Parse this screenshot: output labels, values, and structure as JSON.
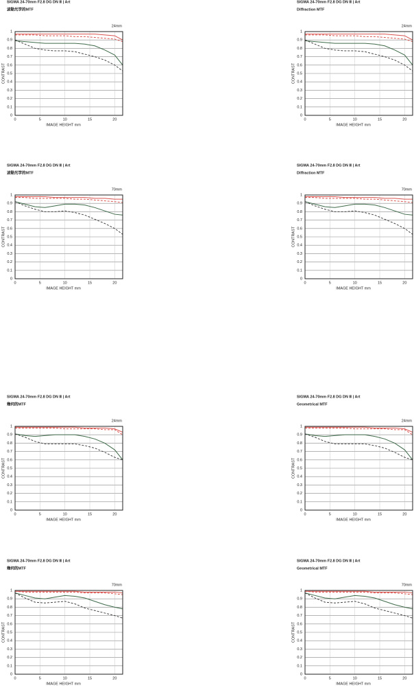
{
  "chart_data": [
    {
      "type": "line",
      "title": "SIGMA 24-70mm F2.8 DG DN Ⅱ | Art",
      "subtitle": "波動光学的MTF",
      "annotation": "24mm",
      "xlabel": "IMAGE HEIGHT   mm",
      "ylabel": "CONTRAST",
      "x": [
        0,
        2,
        4,
        6,
        8,
        10,
        12,
        14,
        16,
        18,
        20,
        21.6
      ],
      "xlim": [
        0,
        21.6
      ],
      "ylim": [
        0,
        1
      ],
      "xticks": [
        0,
        5,
        10,
        15,
        20
      ],
      "yticks": [
        0,
        0.1,
        0.2,
        0.3,
        0.4,
        0.5,
        0.6,
        0.7,
        0.8,
        0.9,
        1
      ],
      "grid": true,
      "series": [
        {
          "color": "#d9534f",
          "dash": false,
          "values": [
            0.97,
            0.97,
            0.97,
            0.97,
            0.97,
            0.97,
            0.97,
            0.97,
            0.97,
            0.96,
            0.95,
            0.9
          ]
        },
        {
          "color": "#d9534f",
          "dash": true,
          "values": [
            0.96,
            0.96,
            0.96,
            0.95,
            0.95,
            0.95,
            0.94,
            0.94,
            0.93,
            0.92,
            0.91,
            0.88
          ]
        },
        {
          "color": "#3f6b4a",
          "dash": false,
          "values": [
            0.89,
            0.88,
            0.87,
            0.86,
            0.86,
            0.86,
            0.86,
            0.85,
            0.83,
            0.78,
            0.72,
            0.6
          ]
        },
        {
          "color": "#444444",
          "dash": true,
          "values": [
            0.9,
            0.85,
            0.8,
            0.78,
            0.77,
            0.77,
            0.76,
            0.73,
            0.7,
            0.66,
            0.6,
            0.53
          ]
        }
      ]
    },
    {
      "type": "line",
      "title": "SIGMA 24-70mm F2.8 DG DN Ⅱ | Art",
      "subtitle": "Diffraction MTF",
      "annotation": "24mm",
      "xlabel": "IMAGE HEIGHT   mm",
      "ylabel": "CONTRAST",
      "x": [
        0,
        2,
        4,
        6,
        8,
        10,
        12,
        14,
        16,
        18,
        20,
        21.6
      ],
      "xlim": [
        0,
        21.6
      ],
      "ylim": [
        0,
        1
      ],
      "xticks": [
        0,
        5,
        10,
        15,
        20
      ],
      "yticks": [
        0,
        0.1,
        0.2,
        0.3,
        0.4,
        0.5,
        0.6,
        0.7,
        0.8,
        0.9,
        1
      ],
      "grid": true,
      "series": [
        {
          "color": "#d9534f",
          "dash": false,
          "values": [
            0.97,
            0.97,
            0.97,
            0.97,
            0.97,
            0.97,
            0.97,
            0.97,
            0.97,
            0.96,
            0.95,
            0.9
          ]
        },
        {
          "color": "#d9534f",
          "dash": true,
          "values": [
            0.96,
            0.96,
            0.96,
            0.95,
            0.95,
            0.95,
            0.94,
            0.94,
            0.93,
            0.92,
            0.91,
            0.88
          ]
        },
        {
          "color": "#3f6b4a",
          "dash": false,
          "values": [
            0.89,
            0.88,
            0.87,
            0.86,
            0.86,
            0.86,
            0.86,
            0.85,
            0.83,
            0.78,
            0.72,
            0.6
          ]
        },
        {
          "color": "#444444",
          "dash": true,
          "values": [
            0.9,
            0.85,
            0.8,
            0.78,
            0.77,
            0.77,
            0.76,
            0.73,
            0.7,
            0.66,
            0.6,
            0.53
          ]
        }
      ]
    },
    {
      "type": "line",
      "title": "SIGMA 24-70mm F2.8 DG DN Ⅱ | Art",
      "subtitle": "波動光学的MTF",
      "annotation": "70mm",
      "xlabel": "IMAGE HEIGHT   mm",
      "ylabel": "CONTRAST",
      "x": [
        0,
        2,
        4,
        6,
        8,
        10,
        12,
        14,
        16,
        18,
        20,
        21.6
      ],
      "xlim": [
        0,
        21.6
      ],
      "ylim": [
        0,
        1
      ],
      "xticks": [
        0,
        5,
        10,
        15,
        20
      ],
      "yticks": [
        0,
        0.1,
        0.2,
        0.3,
        0.4,
        0.5,
        0.6,
        0.7,
        0.8,
        0.9,
        1
      ],
      "grid": true,
      "series": [
        {
          "color": "#d9534f",
          "dash": false,
          "values": [
            0.98,
            0.98,
            0.98,
            0.98,
            0.97,
            0.97,
            0.97,
            0.97,
            0.96,
            0.96,
            0.95,
            0.95
          ]
        },
        {
          "color": "#d9534f",
          "dash": true,
          "values": [
            0.97,
            0.97,
            0.96,
            0.96,
            0.96,
            0.96,
            0.95,
            0.95,
            0.94,
            0.93,
            0.92,
            0.91
          ]
        },
        {
          "color": "#3f6b4a",
          "dash": false,
          "values": [
            0.92,
            0.89,
            0.86,
            0.85,
            0.87,
            0.89,
            0.89,
            0.88,
            0.85,
            0.81,
            0.77,
            0.76
          ]
        },
        {
          "color": "#444444",
          "dash": true,
          "values": [
            0.92,
            0.87,
            0.83,
            0.8,
            0.8,
            0.81,
            0.79,
            0.76,
            0.71,
            0.66,
            0.6,
            0.53
          ]
        }
      ]
    },
    {
      "type": "line",
      "title": "SIGMA 24-70mm F2.8 DG DN Ⅱ | Art",
      "subtitle": "Diffraction MTF",
      "annotation": "70mm",
      "xlabel": "IMAGE HEIGHT   mm",
      "ylabel": "CONTRAST",
      "x": [
        0,
        2,
        4,
        6,
        8,
        10,
        12,
        14,
        16,
        18,
        20,
        21.6
      ],
      "xlim": [
        0,
        21.6
      ],
      "ylim": [
        0,
        1
      ],
      "xticks": [
        0,
        5,
        10,
        15,
        20
      ],
      "yticks": [
        0,
        0.1,
        0.2,
        0.3,
        0.4,
        0.5,
        0.6,
        0.7,
        0.8,
        0.9,
        1
      ],
      "grid": true,
      "series": [
        {
          "color": "#d9534f",
          "dash": false,
          "values": [
            0.98,
            0.98,
            0.98,
            0.98,
            0.97,
            0.97,
            0.97,
            0.97,
            0.96,
            0.96,
            0.95,
            0.95
          ]
        },
        {
          "color": "#d9534f",
          "dash": true,
          "values": [
            0.97,
            0.97,
            0.96,
            0.96,
            0.96,
            0.96,
            0.95,
            0.95,
            0.94,
            0.93,
            0.92,
            0.91
          ]
        },
        {
          "color": "#3f6b4a",
          "dash": false,
          "values": [
            0.92,
            0.89,
            0.86,
            0.85,
            0.87,
            0.89,
            0.89,
            0.88,
            0.85,
            0.81,
            0.77,
            0.76
          ]
        },
        {
          "color": "#444444",
          "dash": true,
          "values": [
            0.92,
            0.87,
            0.83,
            0.8,
            0.8,
            0.81,
            0.79,
            0.76,
            0.71,
            0.66,
            0.6,
            0.53
          ]
        }
      ]
    },
    {
      "type": "line",
      "title": "SIGMA 24-70mm F2.8 DG DN Ⅱ | Art",
      "subtitle": "幾何的MTF",
      "annotation": "24mm",
      "xlabel": "IMAGE HEIGHT   mm",
      "ylabel": "CONTRAST",
      "x": [
        0,
        2,
        4,
        6,
        8,
        10,
        12,
        14,
        16,
        18,
        20,
        21.6
      ],
      "xlim": [
        0,
        21.6
      ],
      "ylim": [
        0,
        1
      ],
      "xticks": [
        0,
        5,
        10,
        15,
        20
      ],
      "yticks": [
        0,
        0.1,
        0.2,
        0.3,
        0.4,
        0.5,
        0.6,
        0.7,
        0.8,
        0.9,
        1
      ],
      "grid": true,
      "series": [
        {
          "color": "#d9534f",
          "dash": false,
          "values": [
            0.99,
            0.99,
            0.99,
            0.99,
            0.99,
            0.99,
            0.99,
            0.98,
            0.98,
            0.98,
            0.97,
            0.93
          ]
        },
        {
          "color": "#d9534f",
          "dash": true,
          "values": [
            0.98,
            0.98,
            0.98,
            0.98,
            0.98,
            0.97,
            0.97,
            0.97,
            0.97,
            0.96,
            0.96,
            0.9
          ]
        },
        {
          "color": "#3f6b4a",
          "dash": false,
          "values": [
            0.91,
            0.89,
            0.88,
            0.89,
            0.9,
            0.9,
            0.9,
            0.88,
            0.85,
            0.8,
            0.72,
            0.6
          ]
        },
        {
          "color": "#444444",
          "dash": true,
          "values": [
            0.91,
            0.87,
            0.82,
            0.79,
            0.79,
            0.79,
            0.79,
            0.77,
            0.74,
            0.69,
            0.63,
            0.6
          ]
        }
      ]
    },
    {
      "type": "line",
      "title": "SIGMA 24-70mm F2.8 DG DN Ⅱ | Art",
      "subtitle": "Geometrical MTF",
      "annotation": "24mm",
      "xlabel": "IMAGE HEIGHT   mm",
      "ylabel": "CONTRAST",
      "x": [
        0,
        2,
        4,
        6,
        8,
        10,
        12,
        14,
        16,
        18,
        20,
        21.6
      ],
      "xlim": [
        0,
        21.6
      ],
      "ylim": [
        0,
        1
      ],
      "xticks": [
        0,
        5,
        10,
        15,
        20
      ],
      "yticks": [
        0,
        0.1,
        0.2,
        0.3,
        0.4,
        0.5,
        0.6,
        0.7,
        0.8,
        0.9,
        1
      ],
      "grid": true,
      "series": [
        {
          "color": "#d9534f",
          "dash": false,
          "values": [
            0.99,
            0.99,
            0.99,
            0.99,
            0.99,
            0.99,
            0.99,
            0.98,
            0.98,
            0.98,
            0.97,
            0.93
          ]
        },
        {
          "color": "#d9534f",
          "dash": true,
          "values": [
            0.98,
            0.98,
            0.98,
            0.98,
            0.98,
            0.97,
            0.97,
            0.97,
            0.97,
            0.96,
            0.96,
            0.9
          ]
        },
        {
          "color": "#3f6b4a",
          "dash": false,
          "values": [
            0.91,
            0.89,
            0.88,
            0.89,
            0.9,
            0.9,
            0.9,
            0.88,
            0.85,
            0.8,
            0.72,
            0.6
          ]
        },
        {
          "color": "#444444",
          "dash": true,
          "values": [
            0.91,
            0.87,
            0.82,
            0.79,
            0.79,
            0.79,
            0.79,
            0.77,
            0.74,
            0.69,
            0.63,
            0.6
          ]
        }
      ]
    },
    {
      "type": "line",
      "title": "SIGMA 24-70mm F2.8 DG DN Ⅱ | Art",
      "subtitle": "幾何的MTF",
      "annotation": "70mm",
      "xlabel": "IMAGE HEIGHT   mm",
      "ylabel": "CONTRAST",
      "x": [
        0,
        2,
        4,
        6,
        8,
        10,
        12,
        14,
        16,
        18,
        20,
        21.6
      ],
      "xlim": [
        0,
        21.6
      ],
      "ylim": [
        0,
        1
      ],
      "xticks": [
        0,
        5,
        10,
        15,
        20
      ],
      "yticks": [
        0,
        0.1,
        0.2,
        0.3,
        0.4,
        0.5,
        0.6,
        0.7,
        0.8,
        0.9,
        1
      ],
      "grid": true,
      "series": [
        {
          "color": "#d9534f",
          "dash": false,
          "values": [
            0.99,
            0.99,
            0.99,
            0.99,
            0.99,
            0.99,
            0.99,
            0.98,
            0.98,
            0.98,
            0.98,
            0.97
          ]
        },
        {
          "color": "#d9534f",
          "dash": true,
          "values": [
            0.99,
            0.98,
            0.98,
            0.98,
            0.98,
            0.98,
            0.98,
            0.97,
            0.97,
            0.97,
            0.96,
            0.95
          ]
        },
        {
          "color": "#3f6b4a",
          "dash": false,
          "values": [
            0.97,
            0.94,
            0.91,
            0.9,
            0.92,
            0.94,
            0.93,
            0.91,
            0.87,
            0.83,
            0.8,
            0.78
          ]
        },
        {
          "color": "#444444",
          "dash": true,
          "values": [
            0.97,
            0.91,
            0.86,
            0.85,
            0.86,
            0.87,
            0.84,
            0.79,
            0.76,
            0.73,
            0.7,
            0.67
          ]
        }
      ]
    },
    {
      "type": "line",
      "title": "SIGMA 24-70mm F2.8 DG DN Ⅱ | Art",
      "subtitle": "Geometrical MTF",
      "annotation": "70mm",
      "xlabel": "IMAGE HEIGHT   mm",
      "ylabel": "CONTRAST",
      "x": [
        0,
        2,
        4,
        6,
        8,
        10,
        12,
        14,
        16,
        18,
        20,
        21.6
      ],
      "xlim": [
        0,
        21.6
      ],
      "ylim": [
        0,
        1
      ],
      "xticks": [
        0,
        5,
        10,
        15,
        20
      ],
      "yticks": [
        0,
        0.1,
        0.2,
        0.3,
        0.4,
        0.5,
        0.6,
        0.7,
        0.8,
        0.9,
        1
      ],
      "grid": true,
      "series": [
        {
          "color": "#d9534f",
          "dash": false,
          "values": [
            0.99,
            0.99,
            0.99,
            0.99,
            0.99,
            0.99,
            0.99,
            0.98,
            0.98,
            0.98,
            0.98,
            0.97
          ]
        },
        {
          "color": "#d9534f",
          "dash": true,
          "values": [
            0.99,
            0.98,
            0.98,
            0.98,
            0.98,
            0.98,
            0.98,
            0.97,
            0.97,
            0.97,
            0.96,
            0.95
          ]
        },
        {
          "color": "#3f6b4a",
          "dash": false,
          "values": [
            0.97,
            0.94,
            0.91,
            0.9,
            0.92,
            0.94,
            0.93,
            0.91,
            0.87,
            0.83,
            0.8,
            0.78
          ]
        },
        {
          "color": "#444444",
          "dash": true,
          "values": [
            0.97,
            0.91,
            0.86,
            0.85,
            0.86,
            0.87,
            0.84,
            0.79,
            0.76,
            0.73,
            0.7,
            0.67
          ]
        }
      ]
    }
  ]
}
